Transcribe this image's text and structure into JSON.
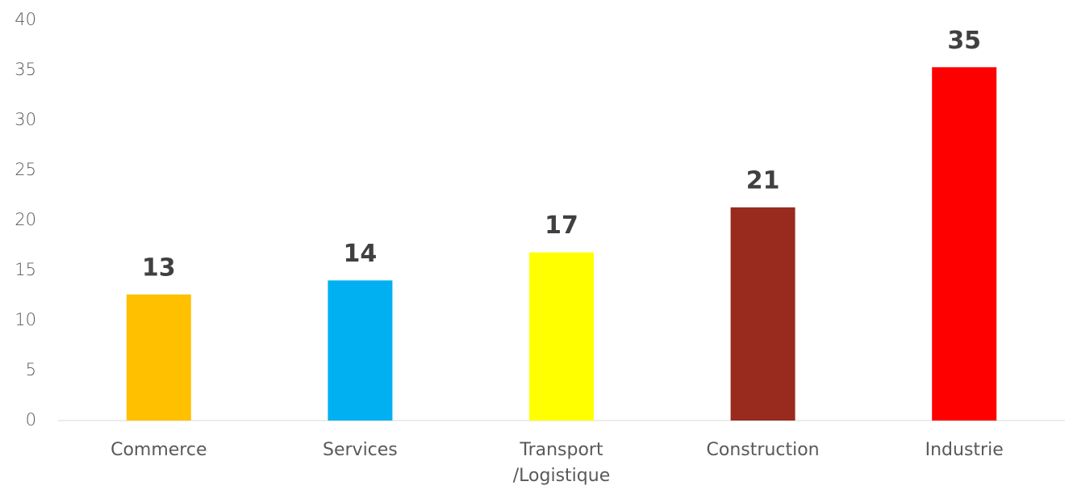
{
  "chart_data": {
    "type": "bar",
    "categories": [
      "Commerce",
      "Services",
      "Transport\n/Logistique",
      "Construction",
      "Industrie"
    ],
    "values": [
      12.6,
      14,
      16.8,
      21.3,
      35.3
    ],
    "value_labels": [
      "13",
      "14",
      "17",
      "21",
      "35"
    ],
    "colors": [
      "#ffc000",
      "#00b0f0",
      "#ffff00",
      "#992b1e",
      "#ff0000"
    ],
    "ylim": [
      0,
      40
    ],
    "yticks": [
      0,
      5,
      10,
      15,
      20,
      25,
      30,
      35,
      40
    ],
    "grid": false
  }
}
